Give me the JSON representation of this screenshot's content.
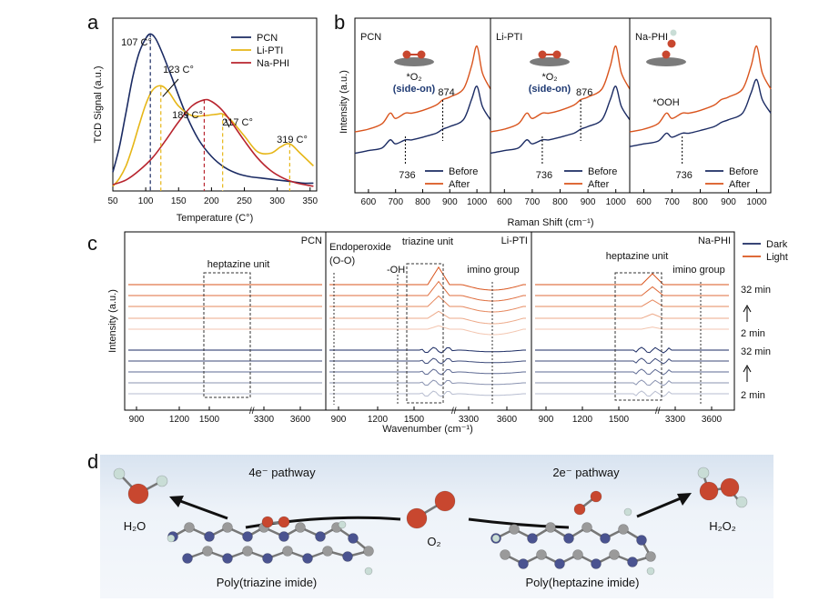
{
  "colors": {
    "pcn": "#1b2b63",
    "li_pti": "#e6b617",
    "na_phi": "#b8242e",
    "before": "#1b2b63",
    "after": "#d9541d",
    "dark": "#1b2b63",
    "light": "#d9541d",
    "atom_o": "#c8472f",
    "atom_n": "#4a5390",
    "atom_c": "#9a9a9a",
    "atom_h": "#c9ddd6"
  },
  "panel_labels": {
    "a": "a",
    "b": "b",
    "c": "c",
    "d": "d"
  },
  "chart_data": [
    {
      "type": "line",
      "panel": "a",
      "title": "",
      "xlabel": "Temperature (C°)",
      "ylabel": "TCD Signal (a.u.)",
      "xlim": [
        50,
        360
      ],
      "xticks": [
        50,
        100,
        150,
        200,
        250,
        300,
        350
      ],
      "legend_position": "top-right",
      "series": [
        {
          "name": "PCN",
          "x": [
            50,
            60,
            70,
            80,
            90,
            100,
            107,
            115,
            125,
            140,
            160,
            180,
            200,
            220,
            240,
            260,
            280,
            300,
            320,
            340,
            355
          ],
          "y": [
            12,
            28,
            50,
            72,
            88,
            97,
            100,
            97,
            88,
            72,
            50,
            33,
            22,
            15,
            11,
            9,
            8,
            7,
            6,
            5,
            5
          ]
        },
        {
          "name": "Li-PTI",
          "x": [
            50,
            60,
            70,
            80,
            90,
            100,
            110,
            123,
            135,
            150,
            170,
            190,
            210,
            217,
            230,
            250,
            270,
            290,
            305,
            319,
            335,
            355
          ],
          "y": [
            3,
            8,
            16,
            28,
            42,
            55,
            64,
            67,
            63,
            54,
            48,
            48,
            49,
            49,
            45,
            35,
            25,
            24,
            28,
            30,
            24,
            16
          ]
        },
        {
          "name": "Na-PHI",
          "x": [
            50,
            70,
            90,
            110,
            130,
            150,
            170,
            189,
            200,
            215,
            230,
            250,
            270,
            290,
            310,
            330,
            355
          ],
          "y": [
            4,
            7,
            13,
            21,
            32,
            44,
            54,
            58,
            57,
            52,
            44,
            32,
            21,
            13,
            8,
            5,
            3
          ]
        }
      ],
      "annotations": [
        "107 C°",
        "123 C°",
        "189 C°",
        "217 C°",
        "319 C°"
      ]
    },
    {
      "type": "line",
      "panel": "b",
      "xlabel": "Raman Shift (cm⁻¹)",
      "ylabel": "Intensity (a.u.)",
      "xlim": [
        550,
        1050
      ],
      "xticks": [
        600,
        700,
        800,
        900,
        1000
      ],
      "subplots": [
        {
          "name": "PCN",
          "markers": [
            "874",
            "736"
          ],
          "adsorbate": [
            "*O₂",
            "(side-on)"
          ]
        },
        {
          "name": "Li-PTI",
          "markers": [
            "876",
            "736"
          ],
          "adsorbate": [
            "*O₂",
            "(side-on)"
          ]
        },
        {
          "name": "Na-PHI",
          "markers": [
            "736"
          ],
          "adsorbate": [
            "*OOH"
          ]
        }
      ],
      "series": [
        {
          "name": "Before",
          "x": [
            550,
            600,
            650,
            680,
            700,
            736,
            760,
            800,
            850,
            874,
            900,
            950,
            980,
            1000,
            1020,
            1050
          ],
          "y": [
            20,
            22,
            24,
            30,
            27,
            30,
            30,
            32,
            35,
            38,
            40,
            45,
            60,
            70,
            55,
            45
          ]
        },
        {
          "name": "After",
          "x": [
            550,
            600,
            650,
            680,
            700,
            736,
            760,
            800,
            850,
            874,
            900,
            950,
            980,
            1000,
            1020,
            1050
          ],
          "y": [
            36,
            38,
            42,
            50,
            46,
            50,
            50,
            52,
            56,
            60,
            62,
            68,
            85,
            100,
            80,
            68
          ]
        }
      ],
      "legend": [
        "Before",
        "After"
      ]
    },
    {
      "type": "line",
      "panel": "c",
      "xlabel": "Wavenumber (cm⁻¹)",
      "ylabel": "Intensity (a.u.)",
      "xticks_left": [
        900,
        1200,
        1500
      ],
      "xticks_right": [
        3300,
        3600
      ],
      "subplots": [
        {
          "name": "PCN",
          "regions": [
            "heptazine unit"
          ]
        },
        {
          "name": "Li-PTI",
          "regions": [
            "Endoperoxide",
            "(O-O)",
            "-OH",
            "triazine unit",
            "imino group"
          ]
        },
        {
          "name": "Na-PHI",
          "regions": [
            "heptazine unit",
            "imino group"
          ]
        }
      ],
      "series": [
        {
          "name": "Dark"
        },
        {
          "name": "Light"
        }
      ],
      "time_labels": [
        "32 min",
        "2 min",
        "32 min",
        "2 min"
      ]
    }
  ],
  "panel_d": {
    "left_pathway": "4e⁻ pathway",
    "right_pathway": "2e⁻ pathway",
    "left_product": "H₂O",
    "right_product": "H₂O₂",
    "center_molecule": "O₂",
    "left_material": "Poly(triazine imide)",
    "right_material": "Poly(heptazine imide)"
  }
}
